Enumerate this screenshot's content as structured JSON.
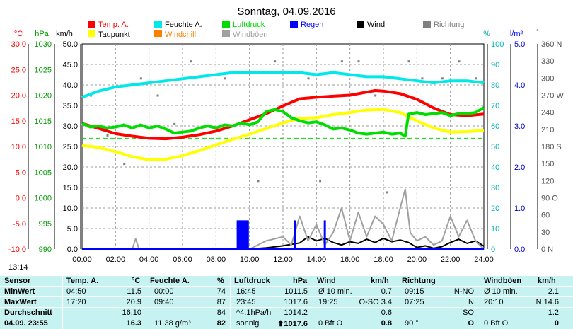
{
  "title": "Sonntag, 04.09.2016",
  "legend": [
    {
      "label": "Temp. A.",
      "color": "#ff0000"
    },
    {
      "label": "Feuchte A.",
      "color": "#00e8e8"
    },
    {
      "label": "Luftdruck",
      "color": "#00dd00"
    },
    {
      "label": "Regen",
      "color": "#0000ff"
    },
    {
      "label": "Wind",
      "color": "#000000"
    },
    {
      "label": "Richtung",
      "color": "#808080"
    },
    {
      "label": "Taupunkt",
      "color": "#ffff00"
    },
    {
      "label": "Windchill",
      "color": "#ff8000"
    },
    {
      "label": "Windböen",
      "color": "#a0a0a0"
    }
  ],
  "axis_units": {
    "temp": "°C",
    "pressure": "hPa",
    "wind": "km/h",
    "humidity": "%",
    "rain": "l/m²",
    "direction": "°"
  },
  "time_label": "13:14",
  "chart_data": {
    "type": "line",
    "title": "Sonntag, 04.09.2016",
    "xlabel": "",
    "x_ticks": [
      "00:00",
      "02:00",
      "04:00",
      "06:00",
      "08:00",
      "10:00",
      "12:00",
      "14:00",
      "16:00",
      "18:00",
      "20:00",
      "22:00",
      "24:00"
    ],
    "xlim": [
      0,
      24
    ],
    "axes": {
      "temp": {
        "unit": "°C",
        "range": [
          -10,
          30
        ],
        "ticks": [
          "30.0",
          "25.0",
          "20.0",
          "15.0",
          "10.0",
          "5.0",
          "0.0",
          "-5.0",
          "-10.0"
        ],
        "color": "#ff0000"
      },
      "pressure": {
        "unit": "hPa",
        "range": [
          990,
          1030
        ],
        "ticks": [
          "1030",
          "1025",
          "1020",
          "1015",
          "1010",
          "1005",
          "1000",
          "995",
          "990"
        ],
        "color": "#00dd00"
      },
      "wind": {
        "unit": "km/h",
        "range": [
          0,
          50
        ],
        "ticks": [
          "50.0",
          "45.0",
          "40.0",
          "35.0",
          "30.0",
          "25.0",
          "20.0",
          "15.0",
          "10.0",
          "5.0",
          "0.0"
        ],
        "color": "#000000"
      },
      "humidity": {
        "unit": "%",
        "range": [
          0,
          100
        ],
        "ticks": [
          "100",
          "90",
          "80",
          "70",
          "60",
          "50",
          "40",
          "30",
          "20",
          "10",
          "0"
        ],
        "color": "#00e8e8"
      },
      "rain": {
        "unit": "l/m²",
        "range": [
          0,
          5
        ],
        "ticks": [
          "5.0",
          "4.0",
          "3.0",
          "2.0",
          "1.0",
          "0.0"
        ],
        "color": "#0000ff"
      },
      "direction": {
        "unit": "°",
        "range": [
          0,
          360
        ],
        "ticks": [
          "360 N",
          "330",
          "300",
          "270 W",
          "240",
          "210",
          "180 S",
          "150",
          "120",
          "90 O",
          "60",
          "30",
          "0 N"
        ],
        "color": "#808080"
      }
    },
    "series": [
      {
        "name": "Temp. A.",
        "axis": "temp",
        "color": "#ff0000",
        "x": [
          0,
          1,
          2,
          3,
          4,
          5,
          6,
          7,
          8,
          9,
          10,
          11,
          12,
          13,
          14,
          15,
          16,
          17,
          17.5,
          18,
          19,
          20,
          21,
          22,
          23,
          24
        ],
        "y": [
          14.5,
          13.5,
          12.5,
          12.0,
          11.6,
          11.5,
          11.8,
          12.3,
          13.0,
          14.0,
          15.2,
          16.4,
          17.9,
          19.3,
          19.6,
          19.8,
          20.0,
          20.6,
          20.9,
          20.8,
          20.3,
          19.2,
          17.5,
          16.2,
          16.0,
          16.3
        ]
      },
      {
        "name": "Feuchte A.",
        "axis": "humidity",
        "color": "#00e8e8",
        "x": [
          0,
          1,
          2,
          3,
          4,
          5,
          6,
          7,
          8,
          9,
          10,
          11,
          12,
          13,
          14,
          15,
          16,
          17,
          18,
          19,
          20,
          21,
          22,
          23,
          24
        ],
        "y": [
          74,
          77,
          79,
          80,
          81,
          82,
          83,
          84,
          85,
          86,
          86,
          86,
          86,
          86,
          85,
          86,
          85,
          84,
          84,
          83,
          82,
          81,
          82,
          82,
          81
        ]
      },
      {
        "name": "Taupunkt",
        "axis": "temp",
        "color": "#ffff00",
        "x": [
          0,
          1,
          2,
          3,
          4,
          5,
          6,
          7,
          8,
          9,
          10,
          11,
          12,
          13,
          14,
          15,
          16,
          17,
          18,
          19,
          20,
          21,
          22,
          23,
          24
        ],
        "y": [
          10.2,
          9.8,
          9.0,
          8.0,
          7.4,
          7.5,
          8.2,
          9.2,
          10.3,
          11.4,
          12.4,
          13.5,
          14.6,
          15.5,
          15.6,
          16.2,
          16.6,
          17.1,
          17.2,
          16.6,
          15.0,
          13.6,
          12.8,
          12.9,
          13.1
        ]
      },
      {
        "name": "Luftdruck",
        "axis": "pressure",
        "color": "#00dd00",
        "x": [
          0,
          0.5,
          1,
          1.5,
          2,
          2.5,
          3,
          3.5,
          4,
          4.5,
          5,
          5.5,
          6,
          6.5,
          7,
          7.5,
          8,
          8.5,
          9,
          9.5,
          10,
          10.5,
          11,
          11.5,
          12,
          12.5,
          13,
          13.5,
          14,
          14.5,
          15,
          15.5,
          16,
          16.5,
          17,
          17.5,
          18,
          18.5,
          19,
          19.3,
          19.5,
          20,
          20.5,
          21,
          21.5,
          22,
          22.5,
          23,
          23.5,
          24
        ],
        "y": [
          1014.5,
          1013.8,
          1014.0,
          1013.6,
          1013.8,
          1014.2,
          1013.6,
          1014.2,
          1013.6,
          1014.0,
          1013.4,
          1012.6,
          1012.8,
          1013.0,
          1013.6,
          1014.0,
          1013.6,
          1014.2,
          1014.0,
          1014.6,
          1014.2,
          1014.8,
          1016.8,
          1017.2,
          1016.8,
          1015.6,
          1015.0,
          1014.6,
          1014.8,
          1014.2,
          1013.4,
          1013.6,
          1013.2,
          1012.6,
          1012.4,
          1012.6,
          1012.8,
          1012.4,
          1012.6,
          1012.0,
          1016.3,
          1016.6,
          1016.2,
          1016.4,
          1016.6,
          1016.0,
          1016.4,
          1016.4,
          1016.6,
          1017.6
        ]
      },
      {
        "name": "Wind",
        "axis": "wind",
        "color": "#000000",
        "x": [
          0,
          2,
          4,
          6,
          8,
          10,
          11,
          12,
          13,
          13.5,
          14,
          14.5,
          15,
          15.5,
          16,
          16.5,
          17,
          17.5,
          18,
          18.5,
          19,
          19.5,
          20,
          20.5,
          21,
          21.5,
          22,
          22.5,
          23,
          23.5,
          24
        ],
        "y": [
          0,
          0,
          0,
          0,
          0,
          0,
          0.3,
          0.8,
          1.5,
          3,
          2,
          2.6,
          1.6,
          1.0,
          1.8,
          1.4,
          2.4,
          1.6,
          2.6,
          1.8,
          2.2,
          1.6,
          0.4,
          0.8,
          0.2,
          0.6,
          1.6,
          2.4,
          1.4,
          2.0,
          0.7
        ]
      },
      {
        "name": "Windböen",
        "axis": "wind",
        "color": "#a0a0a0",
        "x": [
          0,
          2,
          2.5,
          3,
          3.2,
          3.4,
          4,
          6,
          8,
          9,
          10,
          11,
          12,
          12.5,
          13,
          13.5,
          14,
          14.5,
          15,
          15.5,
          16,
          16.5,
          17,
          17.5,
          18,
          18.5,
          19,
          19.3,
          19.6,
          20,
          20.5,
          21,
          21.5,
          22,
          22.5,
          23,
          23.5,
          24
        ],
        "y": [
          0,
          0,
          0,
          0,
          2.5,
          0,
          0,
          0,
          0,
          0,
          0,
          2,
          3,
          1,
          8,
          2,
          6,
          1,
          4,
          10,
          2,
          9,
          3,
          8,
          6,
          2,
          10,
          14.6,
          4,
          2,
          3,
          1,
          2,
          8,
          3,
          7,
          2,
          0
        ]
      },
      {
        "name": "Regen",
        "axis": "rain",
        "color": "#0000ff",
        "bars": [
          [
            9.3,
            0.7
          ],
          [
            9.4,
            0.7
          ],
          [
            9.5,
            0.7
          ],
          [
            9.6,
            0.7
          ],
          [
            9.7,
            0.7
          ],
          [
            9.8,
            0.7
          ],
          [
            9.9,
            0.7
          ],
          [
            12.7,
            0.7
          ],
          [
            14.5,
            0.7
          ]
        ]
      }
    ],
    "direction_points": {
      "color": "#808080",
      "x": [
        0.5,
        1.5,
        2.5,
        3.5,
        4.5,
        5.5,
        6.5,
        8.5,
        10.5,
        11.5,
        13.5,
        14.2,
        15.5,
        16.5,
        17.5,
        18.2,
        18.8,
        19.5,
        20.3,
        21.5,
        22.5,
        23.5
      ],
      "y": [
        270,
        200,
        150,
        300,
        270,
        220,
        330,
        300,
        120,
        330,
        300,
        120,
        330,
        330,
        270,
        100,
        300,
        330,
        300,
        300,
        330,
        300
      ]
    },
    "reference_line": {
      "axis": "temp",
      "value": 11.6,
      "color": "#00dd00",
      "style": "dashed"
    }
  },
  "table": {
    "headers": [
      "Sensor",
      "Temp. A.",
      "°C",
      "Feuchte A.",
      "%",
      "Luftdruck",
      "hPa",
      "Wind",
      "km/h",
      "Richtung",
      "",
      "Windböen",
      "km/h"
    ],
    "rows": [
      {
        "label": "MinWert",
        "temp_time": "04:50",
        "temp": "11.5",
        "hum_time": "00:00",
        "hum": "74",
        "press_time": "16:45",
        "press": "1011.5",
        "wind_time": "Ø 10 min.",
        "wind": "0.7",
        "dir_time": "09:15",
        "dir": "N-NO",
        "gust_time": "Ø 10 min.",
        "gust": "2.1"
      },
      {
        "label": "MaxWert",
        "temp_time": "17:20",
        "temp": "20.9",
        "hum_time": "09:40",
        "hum": "87",
        "press_time": "23:45",
        "press": "1017.6",
        "wind_time": "19:25",
        "wind": "O-SO 3.4",
        "dir_time": "07:25",
        "dir": "N",
        "gust_time": "20:10",
        "gust": "N 14.6"
      },
      {
        "label": "Durchschnitt",
        "temp_time": "",
        "temp": "16.10",
        "hum_time": "",
        "hum": "84",
        "press_time": "^4.1hPa/h",
        "press": "1014.2",
        "wind_time": "",
        "wind": "0.6",
        "dir_time": "",
        "dir": "SO",
        "gust_time": "",
        "gust": "1.2"
      },
      {
        "label": "04.09. 23:55",
        "temp_time": "",
        "temp": "16.3",
        "hum_time": "11.38 g/m³",
        "hum": "82",
        "press_time": "sonnig",
        "press": "⬆1017.6",
        "wind_time": "0 Bft O",
        "wind": "0.8",
        "dir_time": "90 °",
        "dir": "O",
        "gust_time": "0 Bft O",
        "gust": "0"
      }
    ]
  }
}
